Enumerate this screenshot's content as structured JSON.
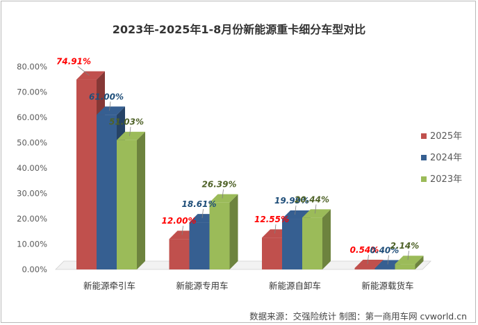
{
  "chart_data": {
    "type": "bar",
    "title": "2023年-2025年1-8月份新能源重卡细分车型对比",
    "categories": [
      "新能源牵引车",
      "新能源专用车",
      "新能源自卸车",
      "新能源载货车"
    ],
    "series": [
      {
        "name": "2025年",
        "values": [
          74.91,
          12.0,
          12.55,
          0.54
        ],
        "labels": [
          "74.91%",
          "12.00%",
          "12.55%",
          "0.54%"
        ],
        "color": "#c0504d",
        "label_color": "#ff0000"
      },
      {
        "name": "2024年",
        "values": [
          61.0,
          18.61,
          19.99,
          0.4
        ],
        "labels": [
          "61.00%",
          "18.61%",
          "19.99%",
          "0.40%"
        ],
        "color": "#365f91",
        "label_color": "#1f4e79"
      },
      {
        "name": "2023年",
        "values": [
          51.03,
          26.39,
          20.44,
          2.14
        ],
        "labels": [
          "51.03%",
          "26.39%",
          "20.44%",
          "2.14%"
        ],
        "color": "#9bbb59",
        "label_color": "#4f6228"
      }
    ],
    "yticks": [
      "0.00%",
      "10.00%",
      "20.00%",
      "30.00%",
      "40.00%",
      "50.00%",
      "60.00%",
      "70.00%",
      "80.00%"
    ],
    "ylim": [
      0,
      80
    ],
    "grid": false,
    "legend": "right",
    "style": "3d-clustered-column"
  },
  "source": "数据来源：交强险统计  制图：第一商用车网 cvworld.cn"
}
